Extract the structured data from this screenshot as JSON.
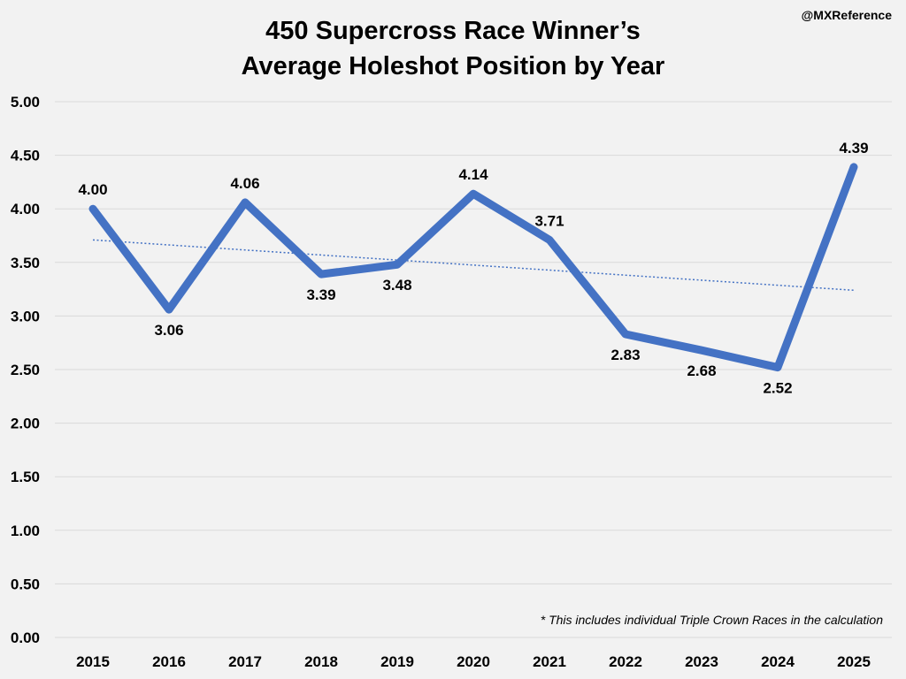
{
  "credit": "@MXReference",
  "footnote": "* This includes individual Triple Crown Races in the calculation",
  "colors": {
    "line": "#4472c4",
    "trend": "#4472c4",
    "grid": "#d9d9d9",
    "background": "#f2f2f2"
  },
  "chart_data": {
    "type": "line",
    "title": [
      "450 Supercross Race Winner’s",
      "Average Holeshot Position by Year"
    ],
    "xlabel": "",
    "ylabel": "",
    "categories": [
      "2015",
      "2016",
      "2017",
      "2018",
      "2019",
      "2020",
      "2021",
      "2022",
      "2023",
      "2024",
      "2025"
    ],
    "series": [
      {
        "name": "Average Holeshot Position",
        "values": [
          4.0,
          3.06,
          4.06,
          3.39,
          3.48,
          4.14,
          3.71,
          2.83,
          2.68,
          2.52,
          4.39
        ]
      }
    ],
    "data_labels": [
      "4.00",
      "3.06",
      "4.06",
      "3.39",
      "3.48",
      "4.14",
      "3.71",
      "2.83",
      "2.68",
      "2.52",
      "4.39"
    ],
    "label_positions": [
      "above",
      "below",
      "above",
      "below",
      "below",
      "above",
      "above",
      "below",
      "below",
      "below",
      "above"
    ],
    "trendline": {
      "type": "linear",
      "style": "dotted",
      "start": 3.71,
      "end": 3.24
    },
    "ylim": [
      0,
      5
    ],
    "yticks": [
      "0.00",
      "0.50",
      "1.00",
      "1.50",
      "2.00",
      "2.50",
      "3.00",
      "3.50",
      "4.00",
      "4.50",
      "5.00"
    ],
    "grid": true,
    "legend": "none"
  }
}
